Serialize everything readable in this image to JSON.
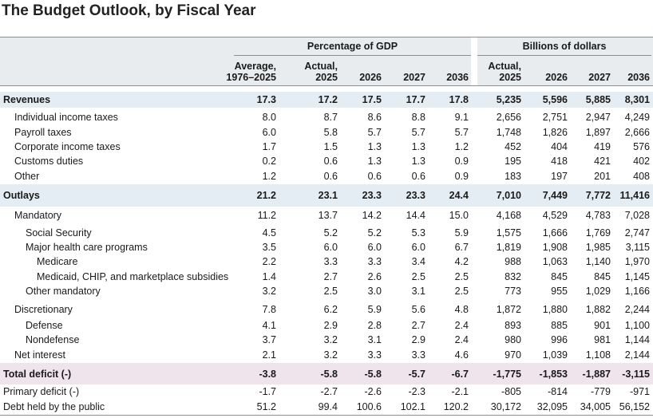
{
  "title": "The Budget Outlook, by Fiscal Year",
  "table": {
    "column_groups": [
      "Percentage of GDP",
      "Billions of dollars"
    ],
    "columns": [
      [
        "Average,",
        "1976–2025"
      ],
      [
        "Actual,",
        "2025"
      ],
      [
        "2026"
      ],
      [
        "2027"
      ],
      [
        "2036"
      ],
      [
        "Actual,",
        "2025"
      ],
      [
        "2026"
      ],
      [
        "2027"
      ],
      [
        "2036"
      ]
    ],
    "rows": [
      {
        "label": "Revenues",
        "values": [
          "17.3",
          "17.2",
          "17.5",
          "17.7",
          "17.8",
          "5,235",
          "5,596",
          "5,885",
          "8,301"
        ]
      },
      {
        "label": "Individual income taxes",
        "values": [
          "8.0",
          "8.7",
          "8.6",
          "8.8",
          "9.1",
          "2,656",
          "2,751",
          "2,947",
          "4,249"
        ]
      },
      {
        "label": "Payroll taxes",
        "values": [
          "6.0",
          "5.8",
          "5.7",
          "5.7",
          "5.7",
          "1,748",
          "1,826",
          "1,897",
          "2,666"
        ]
      },
      {
        "label": "Corporate income taxes",
        "values": [
          "1.7",
          "1.5",
          "1.3",
          "1.3",
          "1.2",
          "452",
          "404",
          "419",
          "576"
        ]
      },
      {
        "label": "Customs duties",
        "values": [
          "0.2",
          "0.6",
          "1.3",
          "1.3",
          "0.9",
          "195",
          "418",
          "421",
          "402"
        ]
      },
      {
        "label": "Other",
        "values": [
          "1.2",
          "0.6",
          "0.6",
          "0.6",
          "0.9",
          "183",
          "197",
          "201",
          "408"
        ]
      },
      {
        "label": "Outlays",
        "values": [
          "21.2",
          "23.1",
          "23.3",
          "23.3",
          "24.4",
          "7,010",
          "7,449",
          "7,772",
          "11,416"
        ]
      },
      {
        "label": "Mandatory",
        "values": [
          "11.2",
          "13.7",
          "14.2",
          "14.4",
          "15.0",
          "4,168",
          "4,529",
          "4,783",
          "7,028"
        ]
      },
      {
        "label": "Social Security",
        "values": [
          "4.5",
          "5.2",
          "5.2",
          "5.3",
          "5.9",
          "1,575",
          "1,666",
          "1,769",
          "2,747"
        ]
      },
      {
        "label": "Major health care programs",
        "values": [
          "3.5",
          "6.0",
          "6.0",
          "6.0",
          "6.7",
          "1,819",
          "1,908",
          "1,985",
          "3,115"
        ]
      },
      {
        "label": "Medicare",
        "values": [
          "2.2",
          "3.3",
          "3.3",
          "3.4",
          "4.2",
          "988",
          "1,063",
          "1,140",
          "1,970"
        ]
      },
      {
        "label": "Medicaid, CHIP, and marketplace subsidies",
        "values": [
          "1.4",
          "2.7",
          "2.6",
          "2.5",
          "2.5",
          "832",
          "845",
          "845",
          "1,145"
        ]
      },
      {
        "label": "Other mandatory",
        "values": [
          "3.2",
          "2.5",
          "3.0",
          "3.1",
          "2.5",
          "773",
          "955",
          "1,029",
          "1,166"
        ]
      },
      {
        "label": "Discretionary",
        "values": [
          "7.8",
          "6.2",
          "5.9",
          "5.6",
          "4.8",
          "1,872",
          "1,880",
          "1,882",
          "2,244"
        ]
      },
      {
        "label": "Defense",
        "values": [
          "4.1",
          "2.9",
          "2.8",
          "2.7",
          "2.4",
          "893",
          "885",
          "901",
          "1,100"
        ]
      },
      {
        "label": "Nondefense",
        "values": [
          "3.7",
          "3.2",
          "3.1",
          "2.9",
          "2.4",
          "980",
          "996",
          "981",
          "1,144"
        ]
      },
      {
        "label": "Net interest",
        "values": [
          "2.1",
          "3.2",
          "3.3",
          "3.3",
          "4.6",
          "970",
          "1,039",
          "1,108",
          "2,144"
        ]
      },
      {
        "label": "Total deficit (-)",
        "values": [
          "-3.8",
          "-5.8",
          "-5.8",
          "-5.7",
          "-6.7",
          "-1,775",
          "-1,853",
          "-1,887",
          "-3,115"
        ]
      },
      {
        "label": "Primary deficit (-)",
        "values": [
          "-1.7",
          "-2.7",
          "-2.6",
          "-2.3",
          "-2.1",
          "-805",
          "-814",
          "-779",
          "-971"
        ]
      },
      {
        "label": "Debt held by the public",
        "values": [
          "51.2",
          "99.4",
          "100.6",
          "102.1",
          "120.2",
          "30,172",
          "32,095",
          "34,005",
          "56,152"
        ]
      }
    ]
  }
}
